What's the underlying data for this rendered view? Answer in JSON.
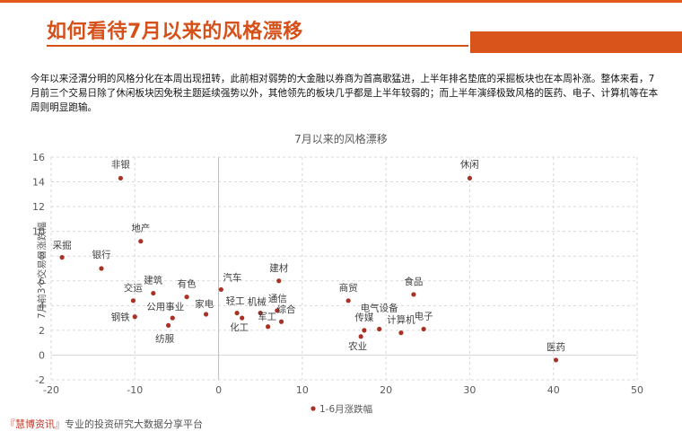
{
  "header": {
    "title": "如何看待7月以来的风格漂移",
    "accent_color": "#d6501a"
  },
  "intro": "今年以来泾渭分明的风格分化在本周出现扭转，此前相对弱势的大金融以券商为首高歌猛进，上半年排名垫底的采掘板块也在本周补涨。整体来看，7月前三个交易日除了休闲板块因免税主题延续强势以外，其他领先的板块几乎都是上半年较弱的；而上半年演绎极致风格的医药、电子、计算机等在本周则明显跑输。",
  "chart_data": {
    "type": "scatter",
    "title": "7月以来的风格漂移",
    "xlabel": "",
    "ylabel": "7月前3个交易日涨跌幅",
    "legend": "1-6月涨跌幅",
    "legend_position": "bottom",
    "xlim": [
      -20,
      50
    ],
    "ylim": [
      -2,
      16
    ],
    "xticks": [
      -20,
      -10,
      0,
      10,
      20,
      30,
      40,
      50
    ],
    "yticks": [
      -2,
      0,
      2,
      4,
      6,
      8,
      10,
      12,
      14,
      16
    ],
    "grid": true,
    "marker_color": "#a93226",
    "points": [
      {
        "label": "非银",
        "x": -11.7,
        "y": 14.3
      },
      {
        "label": "休闲",
        "x": 30.0,
        "y": 14.3
      },
      {
        "label": "地产",
        "x": -9.3,
        "y": 9.2
      },
      {
        "label": "采掘",
        "x": -18.7,
        "y": 7.9
      },
      {
        "label": "银行",
        "x": -14.0,
        "y": 7.0
      },
      {
        "label": "建筑",
        "x": -7.8,
        "y": 5.0
      },
      {
        "label": "交运",
        "x": -10.2,
        "y": 4.4
      },
      {
        "label": "有色",
        "x": -3.8,
        "y": 4.7
      },
      {
        "label": "家电",
        "x": -1.5,
        "y": 3.3
      },
      {
        "label": "汽车",
        "x": 0.3,
        "y": 5.3
      },
      {
        "label": "公用事业",
        "x": -5.5,
        "y": 3.0
      },
      {
        "label": "钢铁",
        "x": -10.0,
        "y": 3.1
      },
      {
        "label": "纺服",
        "x": -6.0,
        "y": 2.4
      },
      {
        "label": "轻工",
        "x": 2.2,
        "y": 3.4
      },
      {
        "label": "化工",
        "x": 2.8,
        "y": 3.0
      },
      {
        "label": "机械",
        "x": 5.0,
        "y": 3.4
      },
      {
        "label": "通信",
        "x": 7.0,
        "y": 3.6
      },
      {
        "label": "军工",
        "x": 5.9,
        "y": 2.3
      },
      {
        "label": "综合",
        "x": 7.5,
        "y": 2.7
      },
      {
        "label": "建材",
        "x": 7.2,
        "y": 6.0
      },
      {
        "label": "商贸",
        "x": 15.5,
        "y": 4.4
      },
      {
        "label": "电气设备",
        "x": 19.2,
        "y": 2.1
      },
      {
        "label": "传媒",
        "x": 17.4,
        "y": 2.0
      },
      {
        "label": "农业",
        "x": 17.0,
        "y": 1.5
      },
      {
        "label": "食品",
        "x": 23.3,
        "y": 4.9
      },
      {
        "label": "计算机",
        "x": 21.8,
        "y": 1.8
      },
      {
        "label": "电子",
        "x": 24.5,
        "y": 2.1
      },
      {
        "label": "医药",
        "x": 40.3,
        "y": -0.4
      }
    ]
  },
  "footer": {
    "brand": "『慧博资讯』",
    "text": "专业的投资研究大数据分享平台"
  }
}
